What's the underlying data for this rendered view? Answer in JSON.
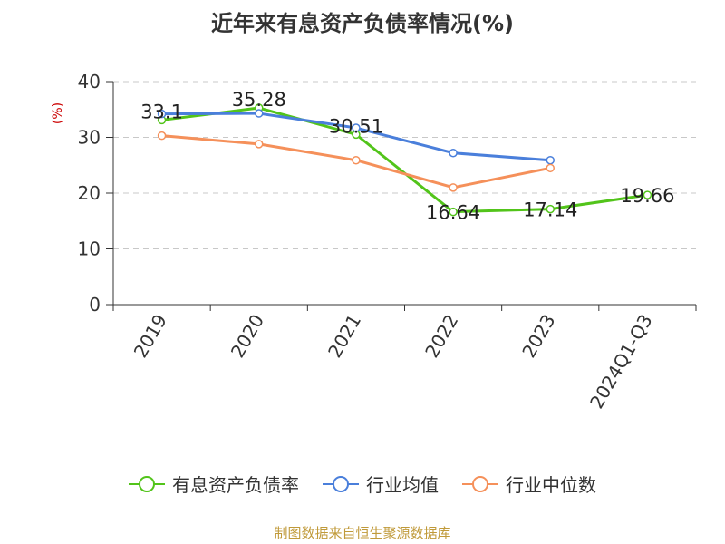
{
  "chart_data": {
    "type": "line",
    "title": "近年来有息资产负债率情况(%)",
    "ylabel": "(%)",
    "xlabel": "",
    "categories": [
      "2019",
      "2020",
      "2021",
      "2022",
      "2023",
      "2024Q1-Q3"
    ],
    "ylim": [
      0,
      40
    ],
    "yticks": [
      0,
      10,
      20,
      30,
      40
    ],
    "grid": true,
    "legend_position": "bottom",
    "series": [
      {
        "name": "有息资产负债率",
        "color": "#52c41a",
        "values": [
          33.1,
          35.28,
          30.51,
          16.64,
          17.14,
          19.66
        ],
        "data_labels": true
      },
      {
        "name": "行业均值",
        "color": "#4a7fdb",
        "values": [
          34.2,
          34.3,
          31.7,
          27.2,
          25.9,
          null
        ],
        "data_labels": false
      },
      {
        "name": "行业中位数",
        "color": "#f5905a",
        "values": [
          30.3,
          28.8,
          25.9,
          21.0,
          24.5,
          null
        ],
        "data_labels": false
      }
    ]
  },
  "source_note": "制图数据来自恒生聚源数据库"
}
